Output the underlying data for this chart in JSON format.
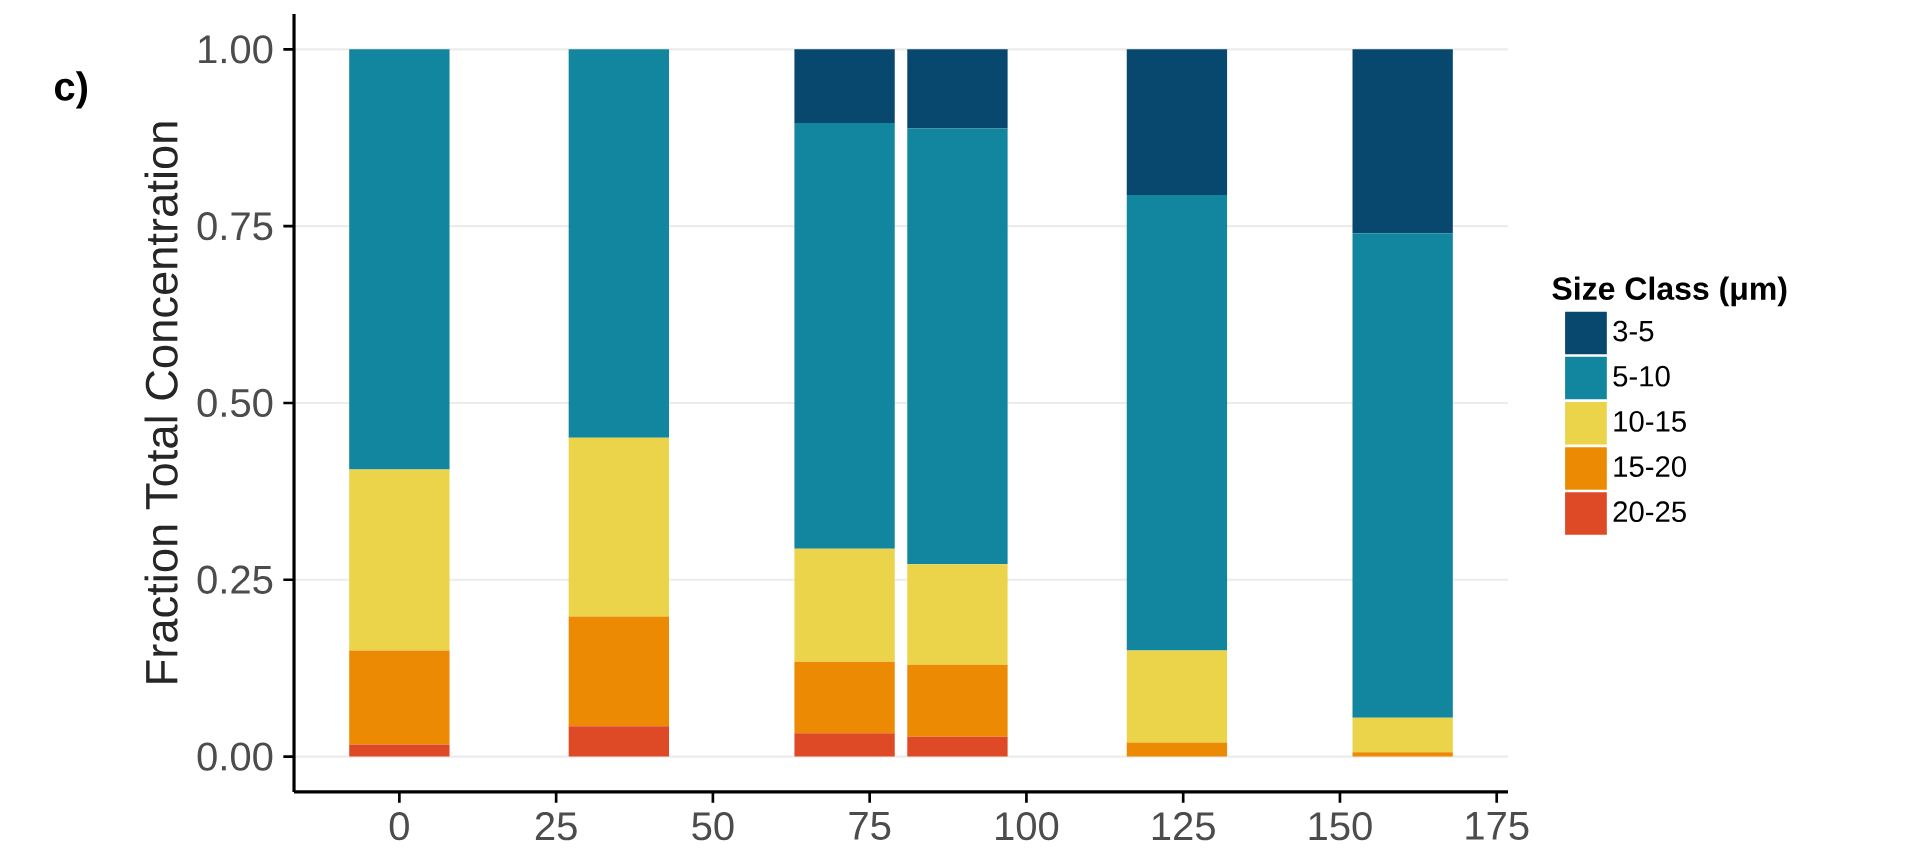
{
  "chart_data": {
    "type": "bar",
    "stacked": true,
    "x": [
      0,
      35,
      71,
      89,
      124,
      160
    ],
    "series": [
      {
        "name": "20-25",
        "color": "#de4a25",
        "values": [
          0.017,
          0.043,
          0.033,
          0.028,
          0,
          0
        ]
      },
      {
        "name": "15-20",
        "color": "#ec8a04",
        "values": [
          0.133,
          0.155,
          0.101,
          0.102,
          0.02,
          0.006
        ]
      },
      {
        "name": "10-15",
        "color": "#ebd44a",
        "values": [
          0.256,
          0.253,
          0.16,
          0.142,
          0.13,
          0.049
        ]
      },
      {
        "name": "5-10",
        "color": "#12869f",
        "values": [
          0.594,
          0.549,
          0.602,
          0.616,
          0.644,
          0.685
        ]
      },
      {
        "name": "3-5",
        "color": "#08476e",
        "values": [
          0,
          0,
          0.104,
          0.112,
          0.206,
          0.26
        ]
      }
    ],
    "ylabel": "Fraction Total Concentration",
    "legend_title": "Size Class (μm)",
    "annotations": [
      "c)"
    ],
    "xlim": [
      -16.8,
      176.8
    ],
    "ylim": [
      -0.05,
      1.05
    ],
    "xticks": [
      0,
      25,
      50,
      75,
      100,
      125,
      150,
      175
    ],
    "yticks": [
      {
        "value": 0,
        "label": "0.00"
      },
      {
        "value": 0.25,
        "label": "0.25"
      },
      {
        "value": 0.5,
        "label": "0.50"
      },
      {
        "value": 0.75,
        "label": "0.75"
      },
      {
        "value": 1,
        "label": "1.00"
      }
    ],
    "grid": "y",
    "legend": "right"
  }
}
